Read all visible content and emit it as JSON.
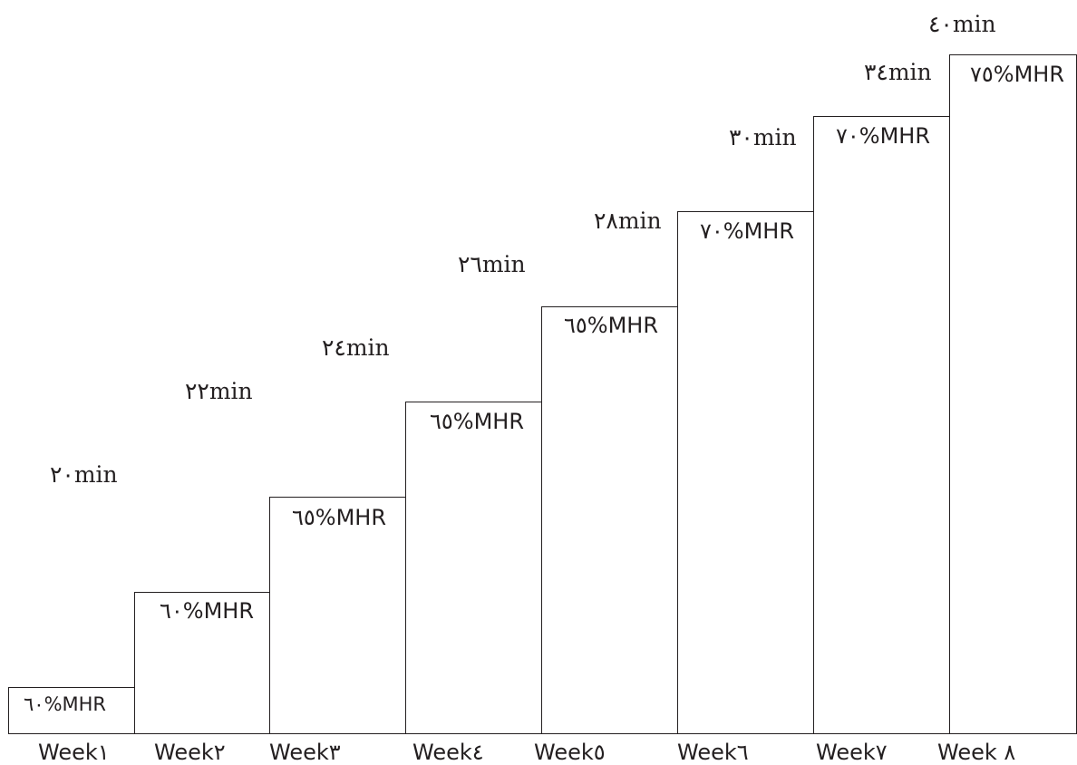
{
  "weeks": [
    {
      "week_label": "Week١",
      "intensity": "٦٠%MHR",
      "duration": "٢٠min"
    },
    {
      "week_label": "Week٢",
      "intensity": "٦٠%MHR",
      "duration": "٢٢min"
    },
    {
      "week_label": "Week٣",
      "intensity": "٦٥%MHR",
      "duration": "٢٤min"
    },
    {
      "week_label": "Week٤",
      "intensity": "٦٥%MHR",
      "duration": "٢٦min"
    },
    {
      "week_label": "Week٥",
      "intensity": "٦٥%MHR",
      "duration": "٢٨min"
    },
    {
      "week_label": "Week٦",
      "intensity": "٧٠%MHR",
      "duration": "٣٠min"
    },
    {
      "week_label": "Week٧",
      "intensity": "٧٠%MHR",
      "duration": "٣٤min"
    },
    {
      "week_label": "Week ٨",
      "intensity": "٧٥%MHR",
      "duration": "٤٠min"
    }
  ]
}
